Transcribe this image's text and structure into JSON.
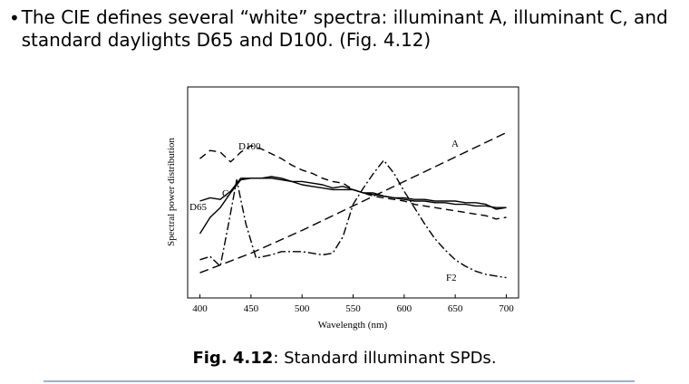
{
  "bullet": {
    "symbol": "•",
    "text": "The CIE defines several “white” spectra: illuminant A, illuminant C, and standard daylights D65 and D100. (Fig. 4.12)"
  },
  "caption": {
    "label": "Fig. 4.12",
    "text": ": Standard illuminant SPDs."
  },
  "chart_data": {
    "type": "line",
    "title": "",
    "xlabel": "Wavelength (nm)",
    "ylabel": "Spectral power distribution",
    "xlim": [
      388,
      712
    ],
    "ylim": [
      0,
      1
    ],
    "xticks": [
      400,
      450,
      500,
      550,
      600,
      650,
      700
    ],
    "grid": false,
    "series": [
      {
        "name": "A",
        "dash": "10,5",
        "x": [
          400,
          450,
          500,
          550,
          600,
          650,
          700
        ],
        "y": [
          0.06,
          0.18,
          0.32,
          0.47,
          0.62,
          0.77,
          0.92
        ]
      },
      {
        "name": "C",
        "dash": "none",
        "x": [
          400,
          410,
          420,
          430,
          440,
          450,
          460,
          470,
          480,
          490,
          500,
          510,
          520,
          530,
          540,
          550,
          560,
          570,
          580,
          590,
          600,
          610,
          620,
          630,
          640,
          650,
          660,
          670,
          680,
          690,
          700
        ],
        "y": [
          0.3,
          0.4,
          0.46,
          0.55,
          0.63,
          0.64,
          0.64,
          0.64,
          0.63,
          0.62,
          0.6,
          0.59,
          0.58,
          0.57,
          0.57,
          0.57,
          0.55,
          0.54,
          0.53,
          0.52,
          0.51,
          0.5,
          0.5,
          0.49,
          0.49,
          0.48,
          0.48,
          0.47,
          0.47,
          0.46,
          0.46
        ]
      },
      {
        "name": "D65",
        "dash": "none",
        "x": [
          400,
          410,
          420,
          430,
          440,
          450,
          460,
          470,
          480,
          490,
          500,
          510,
          520,
          530,
          540,
          550,
          560,
          570,
          580,
          590,
          600,
          610,
          620,
          630,
          640,
          650,
          660,
          670,
          680,
          690,
          700
        ],
        "y": [
          0.5,
          0.52,
          0.51,
          0.56,
          0.64,
          0.64,
          0.64,
          0.65,
          0.64,
          0.62,
          0.62,
          0.61,
          0.6,
          0.58,
          0.59,
          0.57,
          0.55,
          0.55,
          0.53,
          0.52,
          0.52,
          0.51,
          0.51,
          0.5,
          0.5,
          0.5,
          0.49,
          0.49,
          0.48,
          0.45,
          0.46
        ]
      },
      {
        "name": "D100",
        "dash": "8,5",
        "x": [
          400,
          410,
          420,
          430,
          440,
          450,
          460,
          470,
          480,
          490,
          500,
          510,
          520,
          530,
          540,
          550,
          560,
          570,
          580,
          590,
          600,
          610,
          620,
          630,
          640,
          650,
          660,
          670,
          680,
          690,
          700
        ],
        "y": [
          0.76,
          0.81,
          0.8,
          0.74,
          0.8,
          0.84,
          0.82,
          0.79,
          0.76,
          0.72,
          0.69,
          0.67,
          0.64,
          0.62,
          0.61,
          0.57,
          0.55,
          0.53,
          0.52,
          0.51,
          0.5,
          0.48,
          0.47,
          0.46,
          0.45,
          0.44,
          0.43,
          0.42,
          0.41,
          0.39,
          0.4
        ]
      },
      {
        "name": "F2",
        "dash": "9,3,2,3",
        "x": [
          400,
          410,
          420,
          428,
          436,
          445,
          455,
          470,
          480,
          500,
          520,
          530,
          540,
          550,
          560,
          570,
          580,
          590,
          600,
          610,
          620,
          630,
          640,
          650,
          660,
          670,
          680,
          690,
          700
        ],
        "y": [
          0.14,
          0.16,
          0.1,
          0.36,
          0.63,
          0.36,
          0.15,
          0.17,
          0.19,
          0.19,
          0.17,
          0.18,
          0.28,
          0.48,
          0.58,
          0.67,
          0.75,
          0.67,
          0.56,
          0.46,
          0.36,
          0.27,
          0.2,
          0.14,
          0.1,
          0.07,
          0.05,
          0.04,
          0.03
        ]
      }
    ],
    "annotations": [
      "D100",
      "A",
      "C",
      "D65",
      "F2"
    ]
  }
}
